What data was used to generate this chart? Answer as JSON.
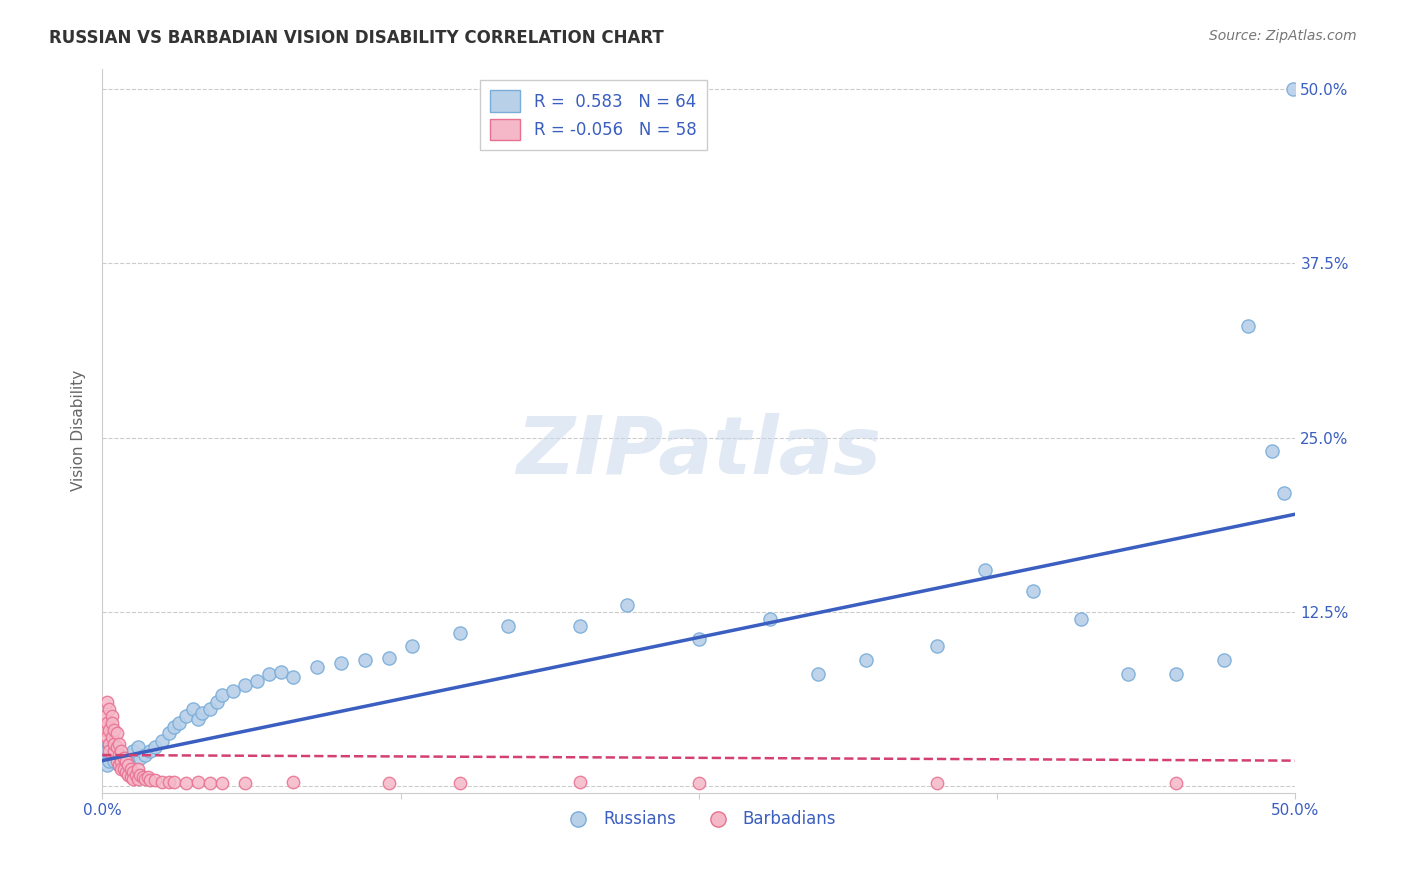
{
  "title": "RUSSIAN VS BARBADIAN VISION DISABILITY CORRELATION CHART",
  "source": "Source: ZipAtlas.com",
  "ylabel": "Vision Disability",
  "xlabel": "",
  "xlim": [
    0.0,
    0.5
  ],
  "ylim": [
    -0.005,
    0.515
  ],
  "ytick_values": [
    0.0,
    0.125,
    0.25,
    0.375,
    0.5
  ],
  "ytick_right_labels": [
    "",
    "12.5%",
    "25.0%",
    "37.5%",
    "50.0%"
  ],
  "xtick_positions": [
    0.0,
    0.125,
    0.25,
    0.375,
    0.5
  ],
  "xtick_labels": [
    "0.0%",
    "",
    "",
    "",
    "50.0%"
  ],
  "grid_color": "#cccccc",
  "background_color": "#ffffff",
  "russian_color": "#b8d0e8",
  "russian_edge_color": "#7aadda",
  "barbadian_color": "#f5b8c8",
  "barbadian_edge_color": "#e87090",
  "russian_R": 0.583,
  "russian_N": 64,
  "barbadian_R": -0.056,
  "barbadian_N": 58,
  "trend_russian_color": "#3b5fc0",
  "trend_barbadian_color": "#d44070",
  "label_color": "#3b5fc0",
  "watermark_text": "ZIPatlas",
  "legend_label_russian": "Russians",
  "legend_label_barbadian": "Barbadians",
  "russian_x": [
    0.001,
    0.002,
    0.002,
    0.003,
    0.003,
    0.004,
    0.004,
    0.005,
    0.005,
    0.006,
    0.007,
    0.007,
    0.008,
    0.009,
    0.01,
    0.011,
    0.012,
    0.013,
    0.015,
    0.016,
    0.018,
    0.02,
    0.022,
    0.025,
    0.028,
    0.03,
    0.032,
    0.035,
    0.038,
    0.04,
    0.042,
    0.045,
    0.048,
    0.05,
    0.055,
    0.06,
    0.065,
    0.07,
    0.075,
    0.08,
    0.09,
    0.1,
    0.11,
    0.12,
    0.13,
    0.15,
    0.17,
    0.2,
    0.22,
    0.25,
    0.28,
    0.3,
    0.32,
    0.35,
    0.37,
    0.39,
    0.41,
    0.43,
    0.45,
    0.47,
    0.48,
    0.49,
    0.495,
    0.499
  ],
  "russian_y": [
    0.02,
    0.025,
    0.015,
    0.03,
    0.018,
    0.022,
    0.028,
    0.018,
    0.025,
    0.02,
    0.022,
    0.015,
    0.018,
    0.02,
    0.015,
    0.02,
    0.022,
    0.025,
    0.028,
    0.02,
    0.022,
    0.025,
    0.028,
    0.032,
    0.038,
    0.042,
    0.045,
    0.05,
    0.055,
    0.048,
    0.052,
    0.055,
    0.06,
    0.065,
    0.068,
    0.072,
    0.075,
    0.08,
    0.082,
    0.078,
    0.085,
    0.088,
    0.09,
    0.092,
    0.1,
    0.11,
    0.115,
    0.115,
    0.13,
    0.105,
    0.12,
    0.08,
    0.09,
    0.1,
    0.155,
    0.14,
    0.12,
    0.08,
    0.08,
    0.09,
    0.33,
    0.24,
    0.21,
    0.5
  ],
  "barbadian_x": [
    0.001,
    0.001,
    0.002,
    0.002,
    0.002,
    0.003,
    0.003,
    0.003,
    0.003,
    0.004,
    0.004,
    0.004,
    0.005,
    0.005,
    0.005,
    0.006,
    0.006,
    0.006,
    0.007,
    0.007,
    0.007,
    0.008,
    0.008,
    0.008,
    0.009,
    0.009,
    0.01,
    0.01,
    0.011,
    0.011,
    0.012,
    0.012,
    0.013,
    0.013,
    0.014,
    0.015,
    0.015,
    0.016,
    0.017,
    0.018,
    0.019,
    0.02,
    0.022,
    0.025,
    0.028,
    0.03,
    0.035,
    0.04,
    0.045,
    0.05,
    0.06,
    0.08,
    0.12,
    0.15,
    0.2,
    0.25,
    0.35,
    0.45
  ],
  "barbadian_y": [
    0.05,
    0.04,
    0.06,
    0.045,
    0.035,
    0.055,
    0.04,
    0.03,
    0.025,
    0.05,
    0.035,
    0.045,
    0.04,
    0.025,
    0.03,
    0.038,
    0.028,
    0.018,
    0.03,
    0.022,
    0.015,
    0.025,
    0.018,
    0.012,
    0.02,
    0.012,
    0.018,
    0.01,
    0.015,
    0.008,
    0.012,
    0.006,
    0.01,
    0.005,
    0.008,
    0.012,
    0.005,
    0.008,
    0.006,
    0.005,
    0.006,
    0.004,
    0.004,
    0.003,
    0.003,
    0.003,
    0.002,
    0.003,
    0.002,
    0.002,
    0.002,
    0.003,
    0.002,
    0.002,
    0.003,
    0.002,
    0.002,
    0.002
  ],
  "trend_r_x0": 0.0,
  "trend_r_y0": 0.018,
  "trend_r_x1": 0.5,
  "trend_r_y1": 0.195,
  "trend_b_x0": 0.0,
  "trend_b_y0": 0.022,
  "trend_b_x1": 0.5,
  "trend_b_y1": 0.018
}
